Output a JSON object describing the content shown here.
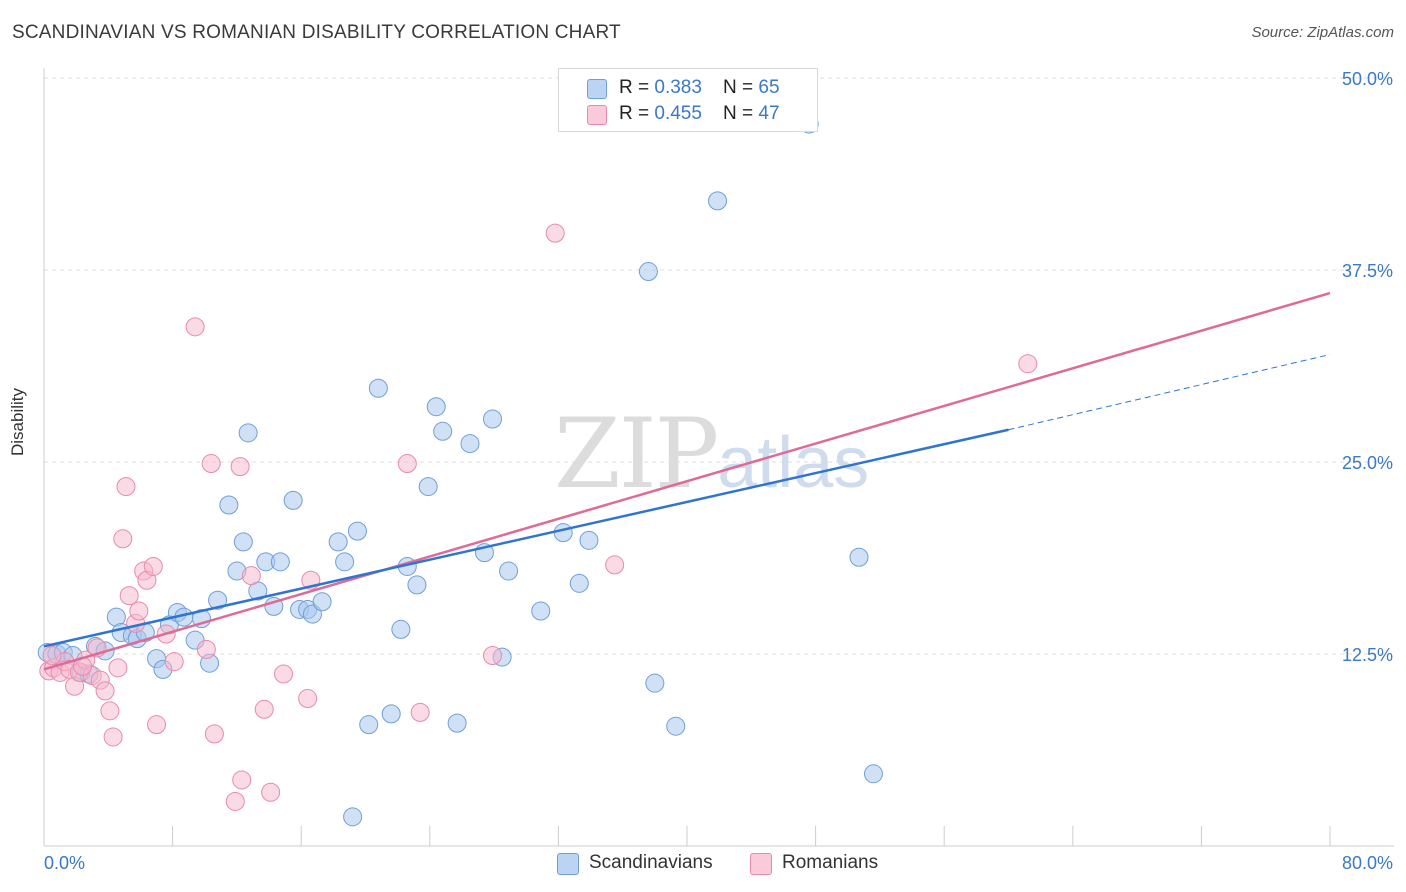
{
  "title": "SCANDINAVIAN VS ROMANIAN DISABILITY CORRELATION CHART",
  "source": "Source: ZipAtlas.com",
  "watermark": {
    "zip": "ZIP",
    "atlas": "atlas"
  },
  "legend": {
    "rows": [
      {
        "r_label": "R = ",
        "r_value": "0.383",
        "n_label": "N = ",
        "n_value": "65"
      },
      {
        "r_label": "R = ",
        "r_value": "0.455",
        "n_label": "N = ",
        "n_value": "47"
      }
    ]
  },
  "bottom_legend": [
    "Scandinavians",
    "Romanians"
  ],
  "colors": {
    "scandinavian_fill": "#a9c8ee",
    "scandinavian_stroke": "#6f9fd8",
    "scandinavian_line": "#2f74d0",
    "romanian_fill": "#f5b8cc",
    "romanian_stroke": "#e88aab",
    "romanian_line": "#e06a96",
    "tick_label": "#3a78c8",
    "grid": "#dddddd"
  },
  "chart_data": {
    "type": "scatter",
    "title": "SCANDINAVIAN VS ROMANIAN DISABILITY CORRELATION CHART",
    "xlabel": "",
    "ylabel": "Disability",
    "xlim": [
      0,
      80
    ],
    "ylim": [
      0,
      50
    ],
    "x_tick_labels": [
      "0.0%",
      "80.0%"
    ],
    "y_ticks": [
      12.5,
      25.0,
      37.5,
      50.0
    ],
    "y_tick_labels": [
      "12.5%",
      "25.0%",
      "37.5%",
      "50.0%"
    ],
    "grid": true,
    "legend_position": "top-center",
    "series": [
      {
        "name": "Scandinavians",
        "r": 0.383,
        "n": 65,
        "trend": {
          "x0": 0,
          "y0": 13.0,
          "x1": 60.0,
          "y1": 27.1,
          "dashed_to_x": 80,
          "dashed_to_y": 32.0
        },
        "points": [
          [
            0.2,
            12.6
          ],
          [
            0.8,
            12.5
          ],
          [
            1.2,
            12.6
          ],
          [
            1.8,
            12.4
          ],
          [
            2.3,
            11.3
          ],
          [
            2.8,
            11.2
          ],
          [
            3.2,
            13.0
          ],
          [
            3.8,
            12.7
          ],
          [
            4.5,
            14.9
          ],
          [
            4.8,
            13.9
          ],
          [
            5.5,
            13.7
          ],
          [
            5.8,
            13.5
          ],
          [
            6.3,
            13.9
          ],
          [
            7.0,
            12.2
          ],
          [
            7.4,
            11.5
          ],
          [
            7.8,
            14.4
          ],
          [
            8.3,
            15.2
          ],
          [
            8.7,
            14.9
          ],
          [
            9.4,
            13.4
          ],
          [
            9.8,
            14.8
          ],
          [
            10.3,
            11.9
          ],
          [
            10.8,
            16.0
          ],
          [
            11.5,
            22.2
          ],
          [
            12.0,
            17.9
          ],
          [
            12.4,
            19.8
          ],
          [
            12.7,
            26.9
          ],
          [
            13.3,
            16.6
          ],
          [
            13.8,
            18.5
          ],
          [
            14.3,
            15.6
          ],
          [
            14.7,
            18.5
          ],
          [
            15.5,
            22.5
          ],
          [
            15.9,
            15.4
          ],
          [
            16.4,
            15.4
          ],
          [
            16.7,
            15.1
          ],
          [
            17.3,
            15.9
          ],
          [
            18.3,
            19.8
          ],
          [
            18.7,
            18.5
          ],
          [
            19.5,
            20.5
          ],
          [
            20.2,
            7.9
          ],
          [
            20.8,
            29.8
          ],
          [
            21.6,
            8.6
          ],
          [
            22.2,
            14.1
          ],
          [
            22.6,
            18.2
          ],
          [
            23.2,
            17.0
          ],
          [
            23.9,
            23.4
          ],
          [
            24.4,
            28.6
          ],
          [
            24.8,
            27.0
          ],
          [
            25.7,
            8.0
          ],
          [
            26.5,
            26.2
          ],
          [
            27.4,
            19.1
          ],
          [
            27.9,
            27.8
          ],
          [
            28.5,
            12.3
          ],
          [
            28.9,
            17.9
          ],
          [
            30.9,
            15.3
          ],
          [
            32.3,
            20.4
          ],
          [
            33.3,
            17.1
          ],
          [
            33.9,
            19.9
          ],
          [
            37.6,
            37.4
          ],
          [
            38.0,
            10.6
          ],
          [
            39.3,
            7.8
          ],
          [
            41.9,
            42.0
          ],
          [
            47.6,
            47.0
          ],
          [
            50.7,
            18.8
          ],
          [
            51.6,
            4.7
          ],
          [
            19.2,
            1.9
          ]
        ]
      },
      {
        "name": "Romanians",
        "r": 0.455,
        "n": 47,
        "trend": {
          "x0": 0,
          "y0": 11.5,
          "x1": 80,
          "y1": 36.0
        },
        "points": [
          [
            0.3,
            11.4
          ],
          [
            0.6,
            11.6
          ],
          [
            1.0,
            11.3
          ],
          [
            1.3,
            12.0
          ],
          [
            1.6,
            11.5
          ],
          [
            1.9,
            10.4
          ],
          [
            2.2,
            11.3
          ],
          [
            2.6,
            12.1
          ],
          [
            3.0,
            11.1
          ],
          [
            3.3,
            12.9
          ],
          [
            3.5,
            10.8
          ],
          [
            3.8,
            10.1
          ],
          [
            4.1,
            8.8
          ],
          [
            4.3,
            7.1
          ],
          [
            4.6,
            11.6
          ],
          [
            4.9,
            20.0
          ],
          [
            5.1,
            23.4
          ],
          [
            5.3,
            16.3
          ],
          [
            5.7,
            14.5
          ],
          [
            5.9,
            15.3
          ],
          [
            6.2,
            17.9
          ],
          [
            6.4,
            17.3
          ],
          [
            6.8,
            18.2
          ],
          [
            7.0,
            7.9
          ],
          [
            7.6,
            13.8
          ],
          [
            8.1,
            12.0
          ],
          [
            9.4,
            33.8
          ],
          [
            10.1,
            12.8
          ],
          [
            10.4,
            24.9
          ],
          [
            10.6,
            7.3
          ],
          [
            11.9,
            2.9
          ],
          [
            12.2,
            24.7
          ],
          [
            12.3,
            4.3
          ],
          [
            12.9,
            17.6
          ],
          [
            13.7,
            8.9
          ],
          [
            14.1,
            3.5
          ],
          [
            14.9,
            11.2
          ],
          [
            16.4,
            9.6
          ],
          [
            16.6,
            17.3
          ],
          [
            22.6,
            24.9
          ],
          [
            23.4,
            8.7
          ],
          [
            27.9,
            12.4
          ],
          [
            31.8,
            39.9
          ],
          [
            35.5,
            18.3
          ],
          [
            61.2,
            31.4
          ],
          [
            0.5,
            12.4
          ],
          [
            2.4,
            11.7
          ]
        ]
      }
    ]
  }
}
